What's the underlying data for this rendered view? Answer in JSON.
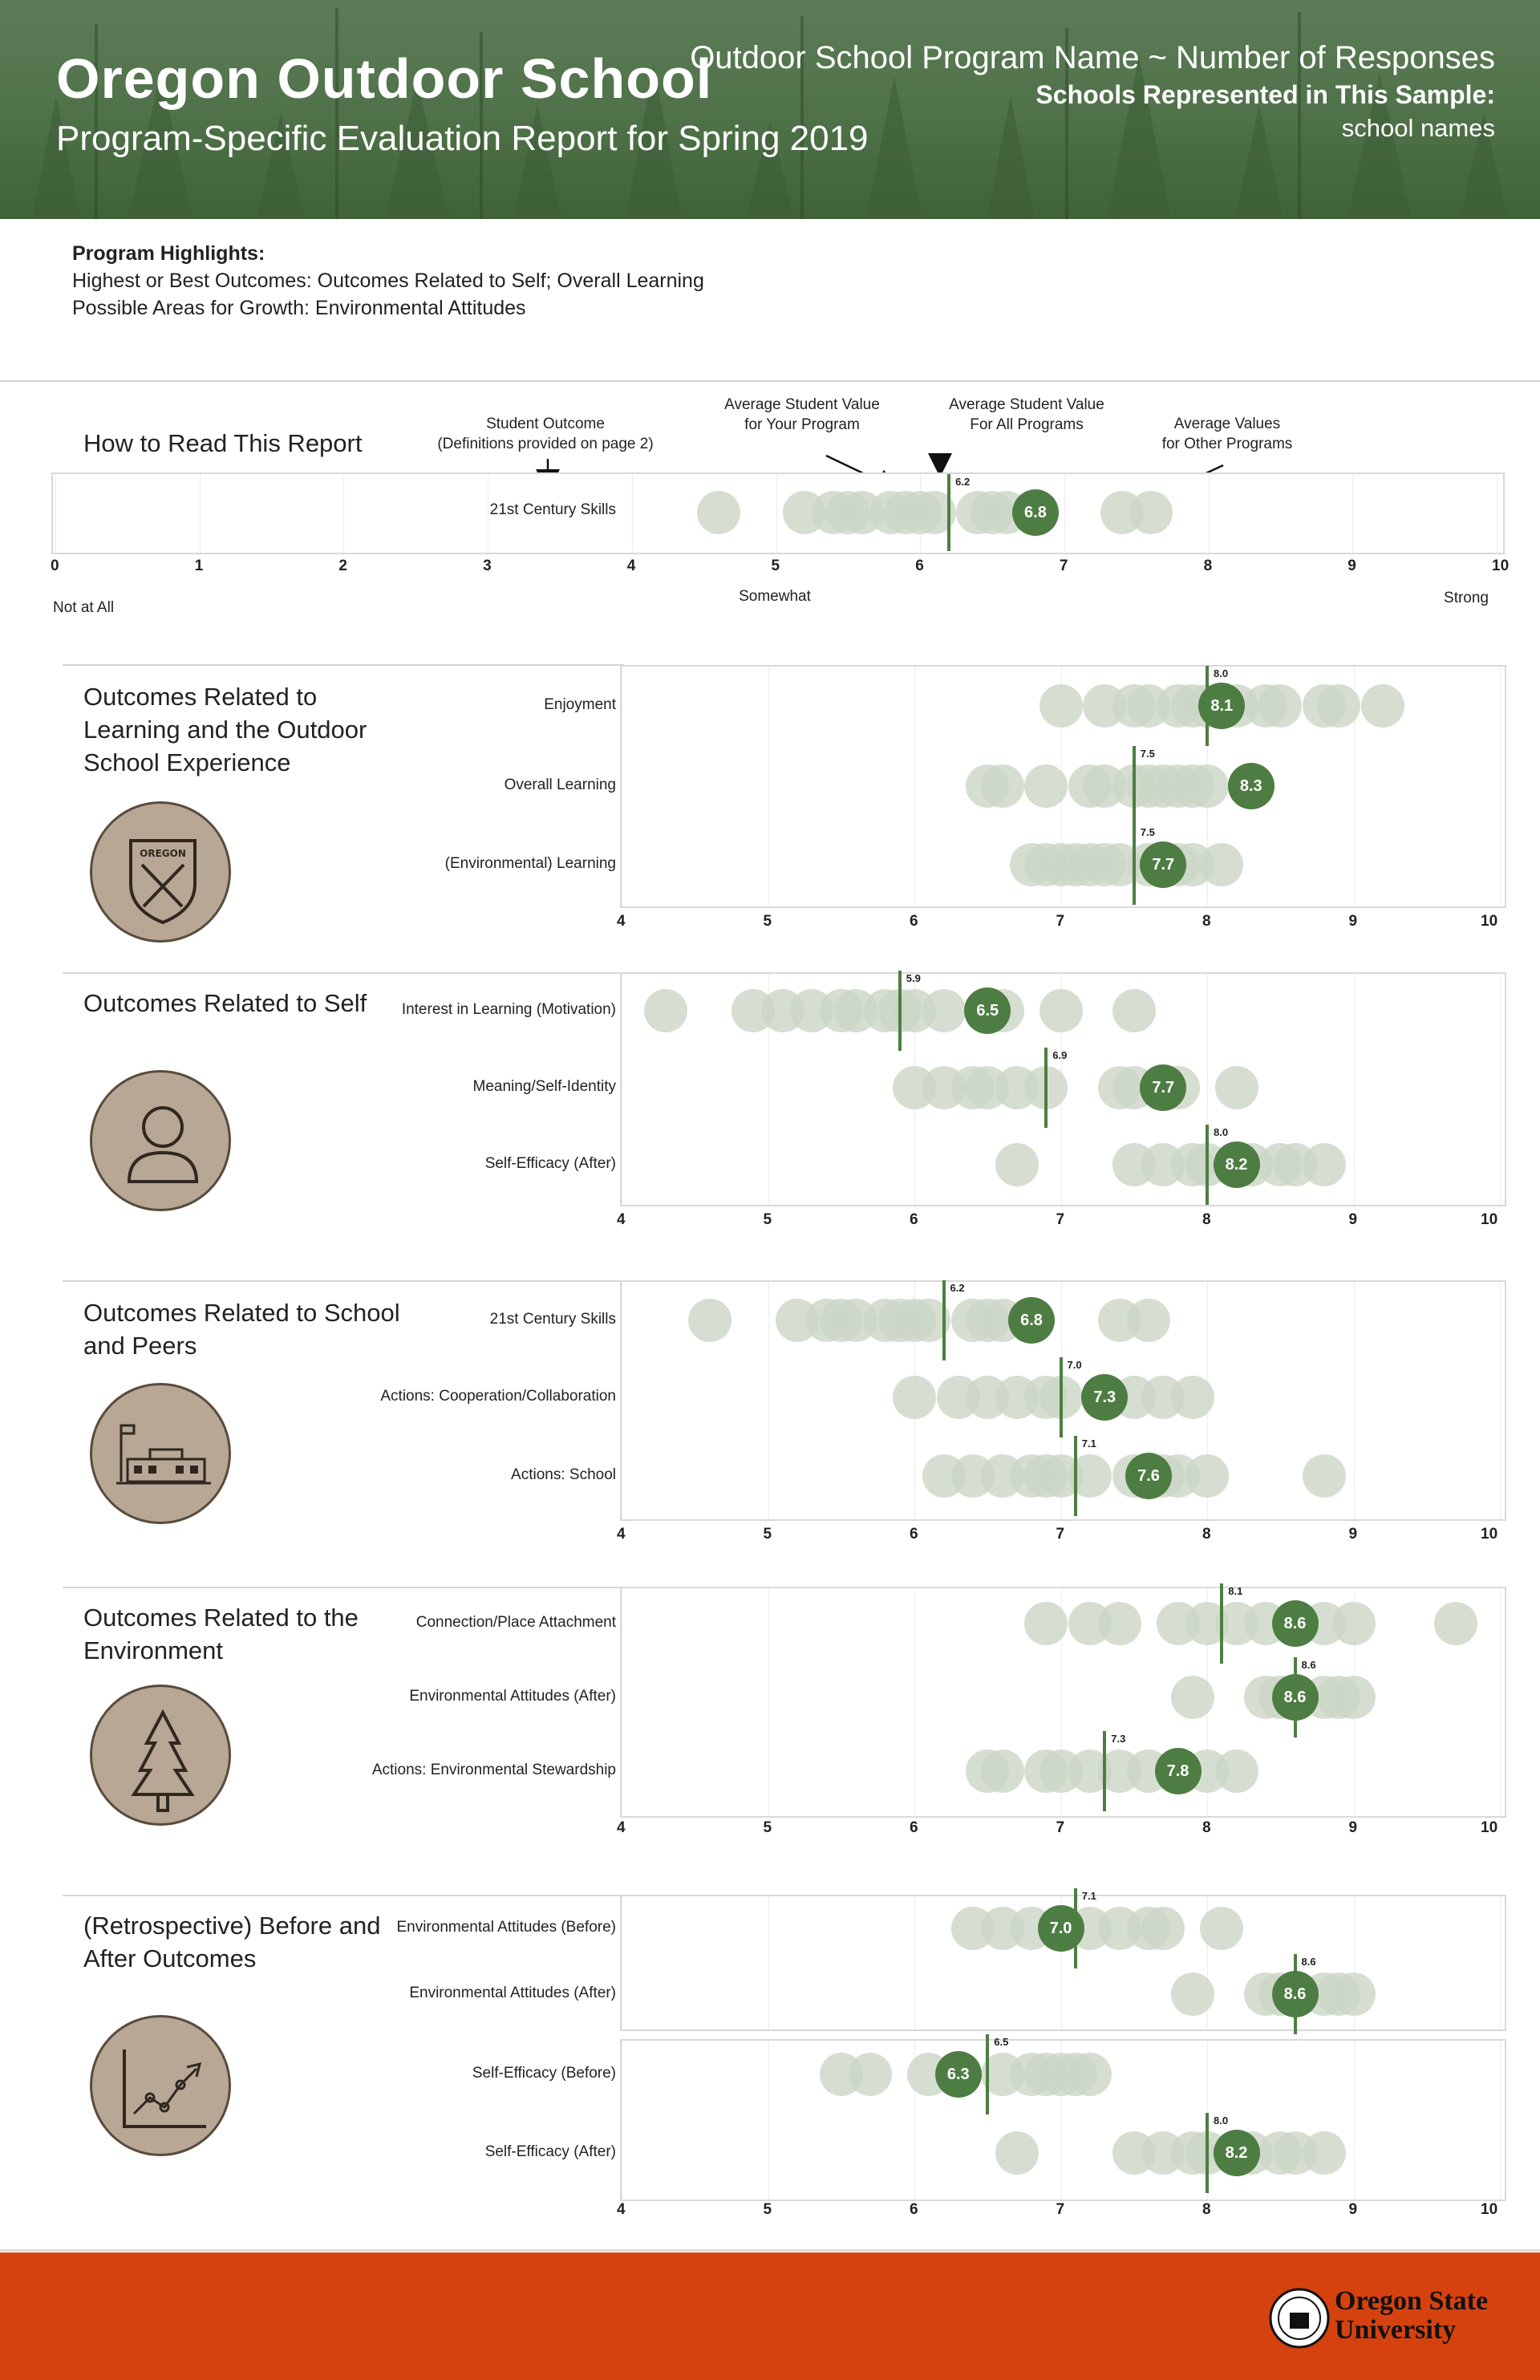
{
  "header": {
    "title": "Oregon Outdoor School",
    "subtitle": "Program-Specific Evaluation Report for Spring 2019",
    "program_line": "Outdoor School Program Name ~ Number of Responses",
    "schools_label": "Schools Represented in This Sample:",
    "schools_value": "school names"
  },
  "highlights": {
    "heading": "Program Highlights:",
    "best": "Highest or Best Outcomes: Outcomes Related to Self; Overall Learning",
    "growth": "Possible Areas for Growth: Environmental Attitudes"
  },
  "legend": {
    "title": "How to Read This Report",
    "student_outcome": [
      "Student Outcome",
      "(Definitions provided on page 2)"
    ],
    "avg_your_program": [
      "Average Student Value",
      "for Your Program"
    ],
    "avg_all_programs": [
      "Average Student Value",
      "For All Programs"
    ],
    "avg_other_programs": [
      "Average Values",
      "for Other Programs"
    ],
    "scale_low": "Not at All",
    "scale_mid": "Somewhat",
    "scale_high": "Strong",
    "example_label": "21st Century Skills"
  },
  "sections": [
    {
      "title": "Outcomes Related to Learning and the Outdoor School Experience",
      "icon": "oregon-badge-icon"
    },
    {
      "title": "Outcomes Related to Self",
      "icon": "person-icon"
    },
    {
      "title": "Outcomes Related to School and Peers",
      "icon": "school-building-icon"
    },
    {
      "title": "Outcomes Related to the Environment",
      "icon": "tree-icon"
    },
    {
      "title": "(Retrospective) Before and After Outcomes",
      "icon": "growth-chart-icon"
    }
  ],
  "chart_data": {
    "type": "scatter",
    "description": "Dot plot: grey dots = average values for other programs, green dot = your program average, vertical line = average for all programs",
    "legend_axis": {
      "range": [
        0,
        10
      ],
      "ticks": [
        0,
        1,
        2,
        3,
        4,
        5,
        6,
        7,
        8,
        9,
        10
      ]
    },
    "panel_axis": {
      "range": [
        4,
        10
      ],
      "ticks": [
        4,
        5,
        6,
        7,
        8,
        9,
        10
      ]
    },
    "legend_example": {
      "label": "21st Century Skills",
      "program": 6.8,
      "all": 6.2,
      "others": [
        4.6,
        5.2,
        5.4,
        5.5,
        5.6,
        5.8,
        5.9,
        6.0,
        6.1,
        6.4,
        6.5,
        6.6,
        7.4,
        7.6
      ]
    },
    "panels": [
      {
        "rows": [
          {
            "label": "Enjoyment",
            "program": 8.1,
            "all": 8.0,
            "others": [
              7.0,
              7.3,
              7.5,
              7.6,
              7.8,
              7.9,
              8.0,
              8.2,
              8.4,
              8.5,
              8.8,
              8.9,
              9.2
            ]
          },
          {
            "label": "Overall Learning",
            "program": 8.3,
            "all": 7.5,
            "others": [
              6.5,
              6.6,
              6.9,
              7.2,
              7.3,
              7.5,
              7.6,
              7.7,
              7.8,
              7.9,
              8.0
            ]
          },
          {
            "label": "(Environmental) Learning",
            "program": 7.7,
            "all": 7.5,
            "others": [
              6.8,
              6.9,
              7.0,
              7.1,
              7.2,
              7.3,
              7.4,
              7.6,
              7.8,
              7.9,
              8.1
            ]
          }
        ]
      },
      {
        "rows": [
          {
            "label": "Interest in Learning (Motivation)",
            "program": 6.5,
            "all": 5.9,
            "others": [
              4.3,
              4.9,
              5.1,
              5.3,
              5.5,
              5.6,
              5.8,
              5.9,
              6.0,
              6.2,
              6.6,
              7.0,
              7.5
            ]
          },
          {
            "label": "Meaning/Self-Identity",
            "program": 7.7,
            "all": 6.9,
            "others": [
              6.0,
              6.2,
              6.4,
              6.5,
              6.7,
              6.9,
              7.4,
              7.5,
              7.8,
              8.2
            ]
          },
          {
            "label": "Self-Efficacy (After)",
            "program": 8.2,
            "all": 8.0,
            "others": [
              6.7,
              7.5,
              7.7,
              7.9,
              8.0,
              8.3,
              8.5,
              8.6,
              8.8
            ]
          }
        ]
      },
      {
        "rows": [
          {
            "label": "21st Century Skills",
            "program": 6.8,
            "all": 6.2,
            "others": [
              4.6,
              5.2,
              5.4,
              5.5,
              5.6,
              5.8,
              5.9,
              6.0,
              6.1,
              6.4,
              6.5,
              6.6,
              7.4,
              7.6
            ]
          },
          {
            "label": "Actions: Cooperation/Collaboration",
            "program": 7.3,
            "all": 7.0,
            "others": [
              6.0,
              6.3,
              6.5,
              6.7,
              6.9,
              7.0,
              7.5,
              7.7,
              7.9
            ]
          },
          {
            "label": "Actions: School",
            "program": 7.6,
            "all": 7.1,
            "others": [
              6.2,
              6.4,
              6.6,
              6.8,
              6.9,
              7.0,
              7.2,
              7.5,
              7.7,
              7.8,
              8.0,
              8.8
            ]
          }
        ]
      },
      {
        "rows": [
          {
            "label": "Connection/Place Attachment",
            "program": 8.6,
            "all": 8.1,
            "others": [
              6.9,
              7.2,
              7.4,
              7.8,
              8.0,
              8.2,
              8.4,
              8.8,
              9.0,
              9.7
            ]
          },
          {
            "label": "Environmental Attitudes (After)",
            "program": 8.6,
            "all": 8.6,
            "others": [
              7.9,
              8.4,
              8.5,
              8.8,
              8.9,
              9.0
            ]
          },
          {
            "label": "Actions: Environmental Stewardship",
            "program": 7.8,
            "all": 7.3,
            "others": [
              6.5,
              6.6,
              6.9,
              7.0,
              7.2,
              7.4,
              7.6,
              8.0,
              8.2
            ]
          }
        ]
      },
      {
        "rows": [
          {
            "label": "Environmental Attitudes (Before)",
            "program": 7.0,
            "all": 7.1,
            "others": [
              6.4,
              6.6,
              6.8,
              7.2,
              7.4,
              7.6,
              7.7,
              8.1
            ]
          },
          {
            "label": "Environmental Attitudes (After)",
            "program": 8.6,
            "all": 8.6,
            "others": [
              7.9,
              8.4,
              8.5,
              8.8,
              8.9,
              9.0
            ]
          },
          {
            "label": "Self-Efficacy (Before)",
            "program": 6.3,
            "all": 6.5,
            "others": [
              5.5,
              5.7,
              6.1,
              6.6,
              6.8,
              6.9,
              7.0,
              7.1,
              7.2
            ]
          },
          {
            "label": "Self-Efficacy (After)",
            "program": 8.2,
            "all": 8.0,
            "others": [
              6.7,
              7.5,
              7.7,
              7.9,
              8.0,
              8.3,
              8.5,
              8.6,
              8.8
            ]
          }
        ]
      }
    ]
  },
  "footer": {
    "logo_line1": "Oregon State",
    "logo_line2": "University"
  },
  "colors": {
    "header_green": "#4f7148",
    "program_dot": "#4e7d43",
    "other_dot": "#ccd6c6",
    "footer": "#d5420f",
    "icon_bg": "#b7a794"
  }
}
